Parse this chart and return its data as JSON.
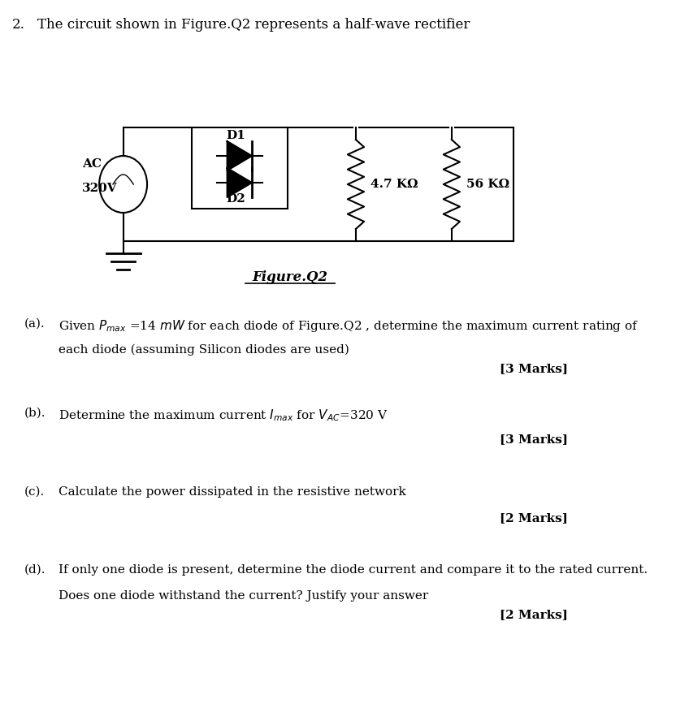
{
  "question_number": "2.",
  "question_text": "The circuit shown in Figure.Q2 represents a half-wave rectifier",
  "figure_label": "Figure.Q2",
  "ac_label": "AC",
  "ac_voltage": "320V",
  "d1_label": "D1",
  "d2_label": "D2",
  "r1_label": "4.7 KΩ",
  "r2_label": "56 KΩ",
  "parts": [
    {
      "label": "(a).",
      "text": "Given $P_{max}$ =14 $mW$ for each diode of Figure.Q2 , determine the maximum current rating of\neach diode (assuming Silicon diodes are used)",
      "marks": "[3 Marks]"
    },
    {
      "label": "(b).",
      "text": "Determine the maximum current $I_{max}$ for $V_{AC}$=320 V",
      "marks": "[3 Marks]"
    },
    {
      "label": "(c).",
      "text": "Calculate the power dissipated in the resistive network",
      "marks": "[2 Marks]"
    },
    {
      "label": "(d).",
      "text": "If only one diode is present, determine the diode current and compare it to the rated current.\nDoes one diode withstand the current? Justify your answer",
      "marks": "[2 Marks]"
    }
  ],
  "background_color": "#ffffff",
  "text_color": "#000000"
}
